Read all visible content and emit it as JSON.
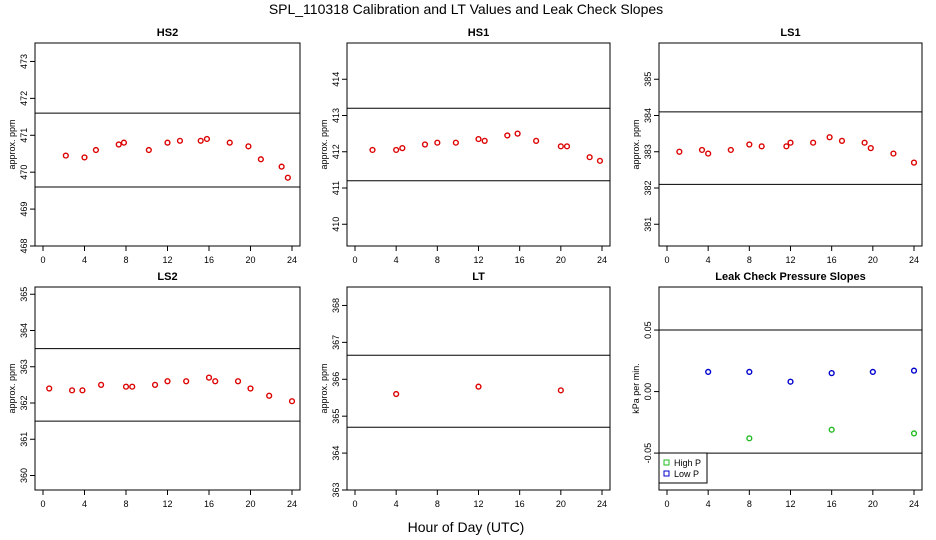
{
  "title": "SPL_110318  Calibration and LT Values and Leak Check Slopes",
  "xlabel": "Hour of Day (UTC)",
  "colors": {
    "calibration_points": "#dd0000",
    "high_p": "#22bb22",
    "low_p": "#0000cc",
    "reference_line": "#000000"
  },
  "chart_data": [
    {
      "type": "scatter",
      "title": "HS2",
      "ylabel": "approx. ppm",
      "xlim": [
        0,
        24
      ],
      "ylim": [
        468.0,
        473.5
      ],
      "xticks": [
        0,
        4,
        8,
        12,
        16,
        20,
        24
      ],
      "yticks": [
        468,
        469,
        470,
        471,
        472,
        473
      ],
      "ref_lines": [
        471.6,
        469.6
      ],
      "series": [
        {
          "x": [
            2.2,
            4.0,
            5.1,
            7.3,
            7.8,
            10.2,
            12.0,
            13.2,
            15.2,
            15.8,
            18.0,
            19.8,
            21.0,
            23.0,
            23.6
          ],
          "y": [
            470.45,
            470.4,
            470.6,
            470.75,
            470.8,
            470.6,
            470.8,
            470.85,
            470.85,
            470.9,
            470.8,
            470.7,
            470.35,
            470.15,
            469.85
          ]
        }
      ]
    },
    {
      "type": "scatter",
      "title": "HS1",
      "ylabel": "approx. ppm",
      "xlim": [
        0,
        24
      ],
      "ylim": [
        409.4,
        415.0
      ],
      "xticks": [
        0,
        4,
        8,
        12,
        16,
        20,
        24
      ],
      "yticks": [
        410,
        411,
        412,
        413,
        414
      ],
      "ref_lines": [
        413.2,
        411.2
      ],
      "series": [
        {
          "x": [
            1.7,
            4.0,
            4.6,
            6.8,
            8.0,
            9.8,
            12.0,
            12.6,
            14.8,
            15.8,
            17.6,
            20.0,
            20.6,
            22.8,
            23.8
          ],
          "y": [
            412.05,
            412.05,
            412.1,
            412.2,
            412.25,
            412.25,
            412.35,
            412.3,
            412.45,
            412.5,
            412.3,
            412.15,
            412.15,
            411.85,
            411.75
          ]
        }
      ]
    },
    {
      "type": "scatter",
      "title": "LS1",
      "ylabel": "approx. ppm",
      "xlim": [
        0,
        24
      ],
      "ylim": [
        380.4,
        386.0
      ],
      "xticks": [
        0,
        4,
        8,
        12,
        16,
        20,
        24
      ],
      "yticks": [
        381,
        382,
        383,
        384,
        385
      ],
      "ref_lines": [
        384.1,
        382.1
      ],
      "series": [
        {
          "x": [
            1.2,
            3.4,
            4.0,
            6.2,
            8.0,
            9.2,
            11.6,
            12.0,
            14.2,
            15.8,
            17.0,
            19.2,
            19.8,
            22.0,
            24.0
          ],
          "y": [
            383.0,
            383.05,
            382.95,
            383.05,
            383.2,
            383.15,
            383.15,
            383.25,
            383.25,
            383.4,
            383.3,
            383.25,
            383.1,
            382.95,
            382.7
          ]
        }
      ]
    },
    {
      "type": "scatter",
      "title": "LS2",
      "ylabel": "approx. ppm",
      "xlim": [
        0,
        24
      ],
      "ylim": [
        359.6,
        365.2
      ],
      "xticks": [
        0,
        4,
        8,
        12,
        16,
        20,
        24
      ],
      "yticks": [
        360,
        361,
        362,
        363,
        364,
        365
      ],
      "ref_lines": [
        363.5,
        361.5
      ],
      "series": [
        {
          "x": [
            0.6,
            2.8,
            3.8,
            5.6,
            8.0,
            8.6,
            10.8,
            12.0,
            13.8,
            16.0,
            16.6,
            18.8,
            20.0,
            21.8,
            24.0
          ],
          "y": [
            362.4,
            362.35,
            362.35,
            362.5,
            362.45,
            362.45,
            362.5,
            362.6,
            362.6,
            362.7,
            362.6,
            362.6,
            362.4,
            362.2,
            362.05
          ]
        }
      ]
    },
    {
      "type": "scatter",
      "title": "LT",
      "ylabel": "approx. ppm",
      "xlim": [
        0,
        24
      ],
      "ylim": [
        363.0,
        368.5
      ],
      "xticks": [
        0,
        4,
        8,
        12,
        16,
        20,
        24
      ],
      "yticks": [
        363,
        364,
        365,
        366,
        367,
        368
      ],
      "ref_lines": [
        366.65,
        364.7
      ],
      "series": [
        {
          "x": [
            4.0,
            12.0,
            20.0
          ],
          "y": [
            365.6,
            365.8,
            365.7
          ]
        }
      ]
    },
    {
      "type": "scatter",
      "title": "Leak Check Pressure Slopes",
      "ylabel": "kPa per min.",
      "xlim": [
        0,
        24
      ],
      "ylim": [
        -0.08,
        0.085
      ],
      "xticks": [
        0,
        4,
        8,
        12,
        16,
        20,
        24
      ],
      "yticks": [
        -0.05,
        0.0,
        0.05
      ],
      "ytick_labels": [
        "-0.05",
        "0.00",
        "0.05"
      ],
      "ref_lines": [
        0.05,
        -0.05
      ],
      "legend": {
        "placement": "bottom-left",
        "entries": [
          "High P",
          "Low P"
        ]
      },
      "series": [
        {
          "name": "High P",
          "x": [
            8.0,
            16.0,
            24.0
          ],
          "y": [
            -0.038,
            -0.031,
            -0.034
          ]
        },
        {
          "name": "Low P",
          "x": [
            4.0,
            8.0,
            12.0,
            16.0,
            20.0,
            24.0
          ],
          "y": [
            0.016,
            0.016,
            0.008,
            0.015,
            0.016,
            0.017
          ]
        }
      ]
    }
  ]
}
